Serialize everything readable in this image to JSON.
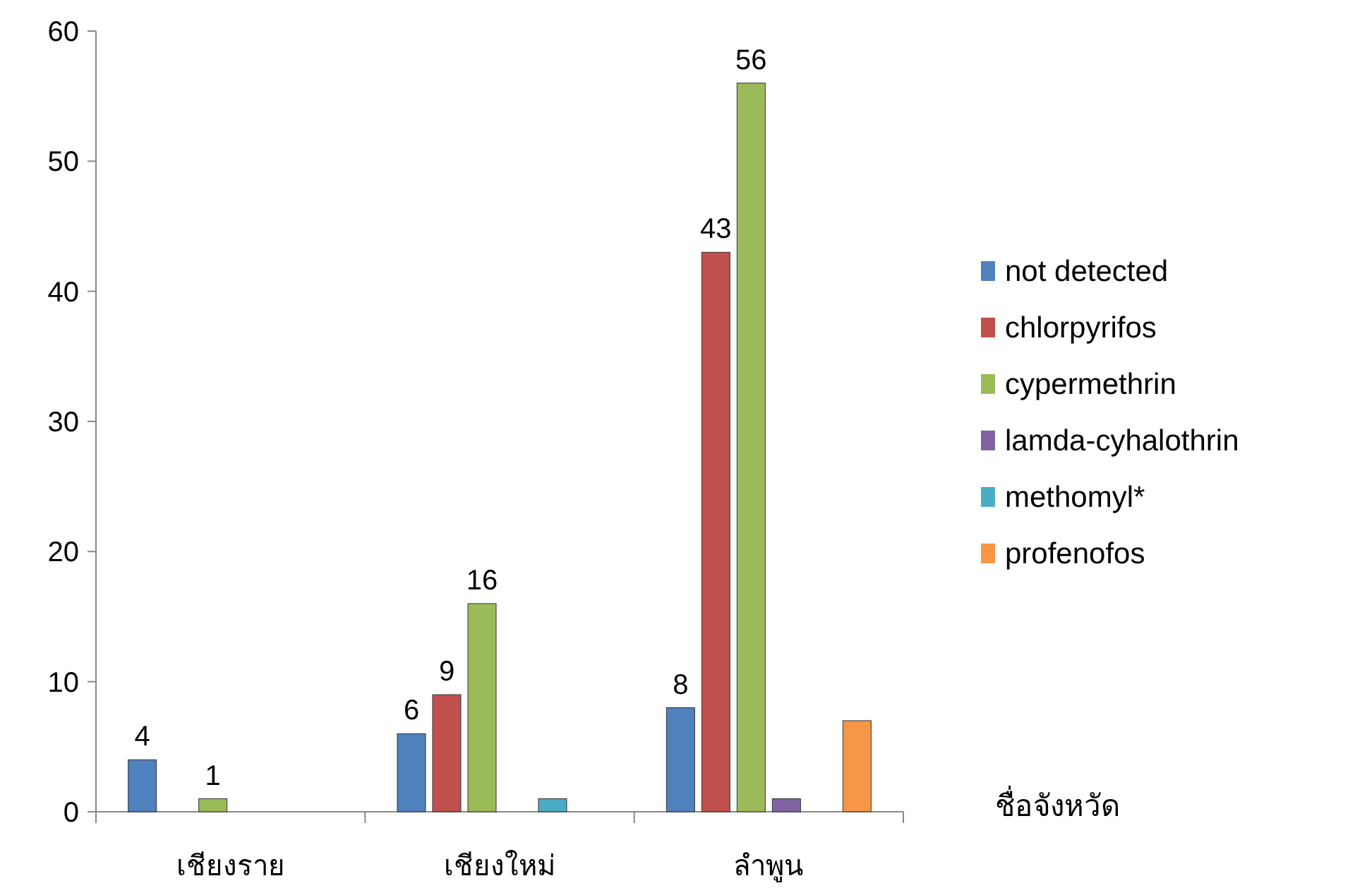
{
  "chart_data": {
    "type": "bar",
    "categories": [
      "เชียงราย",
      "เชียงใหม่",
      "ลำพูน"
    ],
    "xlabel": "ชื่อจังหวัด",
    "ylim": [
      0,
      60
    ],
    "yticks": [
      0,
      10,
      20,
      30,
      40,
      50,
      60
    ],
    "grid": false,
    "legend": "right",
    "series": [
      {
        "name": "not detected",
        "color": "#4f81bd",
        "values": [
          4,
          6,
          8
        ],
        "value_labels": [
          "4",
          "6",
          "8"
        ]
      },
      {
        "name": "chlorpyrifos",
        "color": "#c0504d",
        "values": [
          null,
          9,
          43
        ],
        "value_labels": [
          null,
          "9",
          "43"
        ]
      },
      {
        "name": "cypermethrin",
        "color": "#9bbb59",
        "values": [
          1,
          16,
          56
        ],
        "value_labels": [
          "1",
          "16",
          "56"
        ]
      },
      {
        "name": "lamda-cyhalothrin",
        "color": "#8064a2",
        "values": [
          null,
          null,
          1
        ],
        "value_labels": [
          null,
          null,
          null
        ]
      },
      {
        "name": "methomyl*",
        "color": "#4bacc6",
        "values": [
          null,
          1,
          null
        ],
        "value_labels": [
          null,
          null,
          null
        ]
      },
      {
        "name": "profenofos",
        "color": "#f79646",
        "values": [
          null,
          null,
          7
        ],
        "value_labels": [
          null,
          null,
          null
        ]
      }
    ]
  }
}
